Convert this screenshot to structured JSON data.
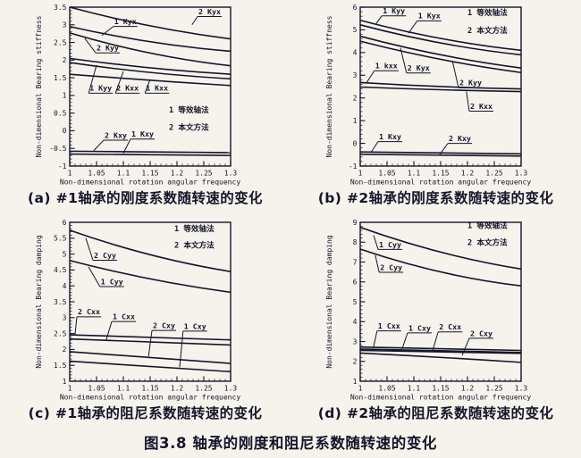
{
  "figure_title": "图3.8 轴承的刚度和阻尼系数随转速的变化",
  "colors": {
    "ink": "#15152a",
    "paper": "#f5f3ec"
  },
  "legend_key": {
    "item1": "1 等效轴法",
    "item2": "2 本文方法"
  },
  "chart_data": [
    {
      "type": "line",
      "caption": "(a) #1轴承的刚度系数随转速的变化",
      "xlabel": "Non-dimensional rotation angular frequency",
      "ylabel": "Non-dimensional Bearing stiffness",
      "xlim": [
        1,
        1.3
      ],
      "ylim": [
        -1,
        3.5
      ],
      "xticks": [
        1,
        1.05,
        1.1,
        1.15,
        1.2,
        1.25,
        1.3
      ],
      "xtick_labels": [
        "1",
        "1.05",
        "1.1",
        "1.15",
        "1.2",
        "1.25",
        "1.3"
      ],
      "yticks": [
        -1,
        -0.5,
        0,
        0.5,
        1,
        1.5,
        2,
        2.5,
        3,
        3.5
      ],
      "ytick_labels": [
        "-1",
        "-0.5",
        "0",
        "0.5",
        "1",
        "1.5",
        "2",
        "2.5",
        "3",
        "3.5"
      ],
      "xminor": 0.01,
      "yminor": 0.1,
      "series": [
        {
          "name": "2 Kyx",
          "points": [
            [
              1,
              3.5
            ],
            [
              1.15,
              2.97
            ],
            [
              1.3,
              2.6
            ]
          ]
        },
        {
          "name": "1 Kyx",
          "points": [
            [
              1,
              2.95
            ],
            [
              1.15,
              2.52
            ],
            [
              1.3,
              2.25
            ]
          ]
        },
        {
          "name": "2 Kyy",
          "points": [
            [
              1,
              2.77
            ],
            [
              1.15,
              2.2
            ],
            [
              1.3,
              1.84
            ]
          ]
        },
        {
          "name": "1 Kyy",
          "points": [
            [
              1,
              2.05
            ],
            [
              1.15,
              1.78
            ],
            [
              1.3,
              1.6
            ]
          ]
        },
        {
          "name": "2 Kxx",
          "points": [
            [
              1,
              1.93
            ],
            [
              1.15,
              1.65
            ],
            [
              1.3,
              1.47
            ]
          ]
        },
        {
          "name": "1 Kxx",
          "points": [
            [
              1,
              1.6
            ],
            [
              1.15,
              1.43
            ],
            [
              1.3,
              1.28
            ]
          ]
        },
        {
          "name": "2 Kxy",
          "points": [
            [
              1,
              -0.58
            ],
            [
              1.3,
              -0.62
            ]
          ]
        },
        {
          "name": "1 Kxy",
          "points": [
            [
              1,
              -0.66
            ],
            [
              1.3,
              -0.7
            ]
          ]
        }
      ],
      "labels": [
        {
          "text": "1 Kyx",
          "x": 1.083,
          "y": 3.02,
          "lx": 1.06,
          "ly": 2.7
        },
        {
          "text": "2 Kyx",
          "x": 1.24,
          "y": 3.3,
          "lx": 1.228,
          "ly": 3.0
        },
        {
          "text": "2 Kyy",
          "x": 1.05,
          "y": 2.27,
          "lx": 1.028,
          "ly": 2.62
        },
        {
          "text": "1 Kyy",
          "x": 1.037,
          "y": 1.13,
          "lx": 1.05,
          "ly": 1.86
        },
        {
          "text": "2 Kxx",
          "x": 1.087,
          "y": 1.13,
          "lx": 1.1,
          "ly": 1.68
        },
        {
          "text": "1 Kxx",
          "x": 1.142,
          "y": 1.13,
          "lx": 1.15,
          "ly": 1.46
        },
        {
          "text": "2 Kxy",
          "x": 1.065,
          "y": -0.2,
          "lx": 1.045,
          "ly": -0.56
        },
        {
          "text": "1 Kxy",
          "x": 1.115,
          "y": -0.17,
          "lx": 1.1,
          "ly": -0.64
        }
      ],
      "legend": [
        {
          "text": "1 等效轴法",
          "x": 1.185,
          "y": 0.52
        },
        {
          "text": "2 本文方法",
          "x": 1.185,
          "y": 0.02
        }
      ]
    },
    {
      "type": "line",
      "caption": "(b) #2轴承的刚度系数随转速的变化",
      "xlabel": "Non-dimensional rotation angular frequency",
      "ylabel": "Non-dimensional Bearing stiffness",
      "xlim": [
        1,
        1.3
      ],
      "ylim": [
        -1,
        6
      ],
      "xticks": [
        1,
        1.05,
        1.1,
        1.15,
        1.2,
        1.25,
        1.3
      ],
      "xtick_labels": [
        "1",
        "1.05",
        "1.1",
        "1.15",
        "1.2",
        "1.25",
        "1.3"
      ],
      "yticks": [
        -1,
        0,
        1,
        2,
        3,
        4,
        5,
        6
      ],
      "ytick_labels": [
        "-1",
        "0",
        "1",
        "2",
        "3",
        "4",
        "5",
        "6"
      ],
      "xminor": 0.01,
      "yminor": 0.2,
      "series": [
        {
          "name": "1 Kyy",
          "points": [
            [
              1,
              5.42
            ],
            [
              1.15,
              4.62
            ],
            [
              1.3,
              4.1
            ]
          ]
        },
        {
          "name": "1 Kyx",
          "points": [
            [
              1,
              5.22
            ],
            [
              1.15,
              4.42
            ],
            [
              1.3,
              3.9
            ]
          ]
        },
        {
          "name": "2 Kyx",
          "points": [
            [
              1,
              4.72
            ],
            [
              1.15,
              3.9
            ],
            [
              1.3,
              3.32
            ]
          ]
        },
        {
          "name": "2 Kyy",
          "points": [
            [
              1,
              4.5
            ],
            [
              1.15,
              3.7
            ],
            [
              1.3,
              3.12
            ]
          ]
        },
        {
          "name": "1 kxx",
          "points": [
            [
              1,
              2.68
            ],
            [
              1.15,
              2.5
            ],
            [
              1.3,
              2.4
            ]
          ]
        },
        {
          "name": "2 Kxx",
          "points": [
            [
              1,
              2.48
            ],
            [
              1.15,
              2.36
            ],
            [
              1.3,
              2.28
            ]
          ]
        },
        {
          "name": "1 Kxy",
          "points": [
            [
              1,
              -0.38
            ],
            [
              1.3,
              -0.46
            ]
          ]
        },
        {
          "name": "2 Kxy",
          "points": [
            [
              1,
              -0.48
            ],
            [
              1.3,
              -0.56
            ]
          ]
        }
      ],
      "labels": [
        {
          "text": "1 Kyy",
          "x": 1.042,
          "y": 5.72,
          "lx": 1.03,
          "ly": 5.28
        },
        {
          "text": "1 Kyx",
          "x": 1.108,
          "y": 5.5,
          "lx": 1.09,
          "ly": 4.85
        },
        {
          "text": "1 kxx",
          "x": 1.028,
          "y": 3.3,
          "lx": 1.012,
          "ly": 2.68
        },
        {
          "text": "2 Kyx",
          "x": 1.088,
          "y": 3.2,
          "lx": 1.075,
          "ly": 4.2
        },
        {
          "text": "2 Kyy",
          "x": 1.185,
          "y": 2.55,
          "lx": 1.172,
          "ly": 3.62
        },
        {
          "text": "2 Kxx",
          "x": 1.205,
          "y": 1.52,
          "lx": 1.198,
          "ly": 2.28
        },
        {
          "text": "1 Kxy",
          "x": 1.035,
          "y": 0.18,
          "lx": 1.02,
          "ly": -0.4
        },
        {
          "text": "2 Kxy",
          "x": 1.165,
          "y": 0.1,
          "lx": 1.148,
          "ly": -0.5
        }
      ],
      "legend": [
        {
          "text": "1 等效轴法",
          "x": 1.2,
          "y": 5.65
        },
        {
          "text": "2 本文方法",
          "x": 1.2,
          "y": 4.85
        }
      ]
    },
    {
      "type": "line",
      "caption": "(c) #1轴承的阻尼系数随转速的变化",
      "xlabel": "Non-dimensional rotation angular frequency",
      "ylabel": "Non-dimensional Bearing damping",
      "xlim": [
        1,
        1.3
      ],
      "ylim": [
        1,
        6
      ],
      "xticks": [
        1,
        1.05,
        1.1,
        1.15,
        1.2,
        1.25,
        1.3
      ],
      "xtick_labels": [
        "1",
        "1.05",
        "1.1",
        "1.15",
        "1.2",
        "1.25",
        "1.3"
      ],
      "yticks": [
        1,
        1.5,
        2,
        2.5,
        3,
        3.5,
        4,
        4.5,
        5,
        5.5,
        6
      ],
      "ytick_labels": [
        "1",
        "1.5",
        "2",
        "2.5",
        "3",
        "3.5",
        "4",
        "4.5",
        "5",
        "5.5",
        "6"
      ],
      "xminor": 0.01,
      "yminor": 0.1,
      "series": [
        {
          "name": "2 Cyy",
          "points": [
            [
              1,
              5.75
            ],
            [
              1.15,
              4.98
            ],
            [
              1.3,
              4.45
            ]
          ]
        },
        {
          "name": "1 Cyy",
          "points": [
            [
              1,
              4.8
            ],
            [
              1.15,
              4.22
            ],
            [
              1.3,
              3.8
            ]
          ]
        },
        {
          "name": "2 Cxx",
          "points": [
            [
              1,
              2.46
            ],
            [
              1.3,
              2.3
            ]
          ]
        },
        {
          "name": "1 Cxx",
          "points": [
            [
              1,
              2.33
            ],
            [
              1.3,
              2.14
            ]
          ]
        },
        {
          "name": "2 Cxy",
          "points": [
            [
              1,
              1.93
            ],
            [
              1.15,
              1.74
            ],
            [
              1.3,
              1.56
            ]
          ]
        },
        {
          "name": "1 Cxy",
          "points": [
            [
              1,
              1.63
            ],
            [
              1.15,
              1.46
            ],
            [
              1.3,
              1.3
            ]
          ]
        }
      ],
      "labels": [
        {
          "text": "2 Cyy",
          "x": 1.045,
          "y": 4.88,
          "lx": 1.03,
          "ly": 5.5
        },
        {
          "text": "1 Cyy",
          "x": 1.058,
          "y": 4.05,
          "lx": 1.035,
          "ly": 4.6
        },
        {
          "text": "2 Cxx",
          "x": 1.015,
          "y": 3.1,
          "lx": 1.01,
          "ly": 2.48
        },
        {
          "text": "1 Cxx",
          "x": 1.08,
          "y": 2.95,
          "lx": 1.068,
          "ly": 2.3
        },
        {
          "text": "2 Cxy",
          "x": 1.155,
          "y": 2.67,
          "lx": 1.147,
          "ly": 1.78
        },
        {
          "text": "1 Cxy",
          "x": 1.213,
          "y": 2.65,
          "lx": 1.205,
          "ly": 1.44
        }
      ],
      "legend": [
        {
          "text": "1 等效轴法",
          "x": 1.195,
          "y": 5.72
        },
        {
          "text": "2 本文方法",
          "x": 1.195,
          "y": 5.2
        }
      ]
    },
    {
      "type": "line",
      "caption": "(d) #2轴承的阻尼系数随转速的变化",
      "xlabel": "Non-dimensional rotation angular frequency",
      "ylabel": "Non-dimensional Bearing damping",
      "xlim": [
        1,
        1.3
      ],
      "ylim": [
        1,
        9
      ],
      "xticks": [
        1,
        1.05,
        1.1,
        1.15,
        1.2,
        1.25,
        1.3
      ],
      "xtick_labels": [
        "1",
        "1.05",
        "1.1",
        "1.15",
        "1.2",
        "1.25",
        "1.3"
      ],
      "yticks": [
        1,
        2,
        3,
        4,
        5,
        6,
        7,
        8,
        9
      ],
      "ytick_labels": [
        "1",
        "2",
        "3",
        "4",
        "5",
        "6",
        "7",
        "8",
        "9"
      ],
      "xminor": 0.01,
      "yminor": 0.2,
      "series": [
        {
          "name": "1 Cyy",
          "points": [
            [
              1,
              8.75
            ],
            [
              1.15,
              7.5
            ],
            [
              1.3,
              6.65
            ]
          ]
        },
        {
          "name": "2 Cyy",
          "points": [
            [
              1,
              7.65
            ],
            [
              1.15,
              6.5
            ],
            [
              1.3,
              5.8
            ]
          ]
        },
        {
          "name": "1 Cxx",
          "points": [
            [
              1,
              2.72
            ],
            [
              1.3,
              2.55
            ]
          ]
        },
        {
          "name": "1 Cxy",
          "points": [
            [
              1,
              2.62
            ],
            [
              1.3,
              2.45
            ]
          ]
        },
        {
          "name": "2 Cxx",
          "points": [
            [
              1,
              2.55
            ],
            [
              1.3,
              2.4
            ]
          ]
        },
        {
          "name": "2 Cxy",
          "points": [
            [
              1,
              2.42
            ],
            [
              1.15,
              2.2
            ],
            [
              1.3,
              1.95
            ]
          ]
        }
      ],
      "labels": [
        {
          "text": "1 Cyy",
          "x": 1.035,
          "y": 7.75,
          "lx": 1.025,
          "ly": 8.35
        },
        {
          "text": "2 Cyy",
          "x": 1.037,
          "y": 6.6,
          "lx": 1.028,
          "ly": 7.35
        },
        {
          "text": "1 Cxx",
          "x": 1.033,
          "y": 3.65,
          "lx": 1.025,
          "ly": 2.74
        },
        {
          "text": "1 Cxy",
          "x": 1.09,
          "y": 3.55,
          "lx": 1.078,
          "ly": 2.62
        },
        {
          "text": "2 Cxx",
          "x": 1.147,
          "y": 3.6,
          "lx": 1.135,
          "ly": 2.54
        },
        {
          "text": "2 Cxy",
          "x": 1.205,
          "y": 3.28,
          "lx": 1.19,
          "ly": 2.3
        }
      ],
      "legend": [
        {
          "text": "1 等效轴法",
          "x": 1.2,
          "y": 8.7
        },
        {
          "text": "2 本文方法",
          "x": 1.2,
          "y": 7.85
        }
      ]
    }
  ]
}
